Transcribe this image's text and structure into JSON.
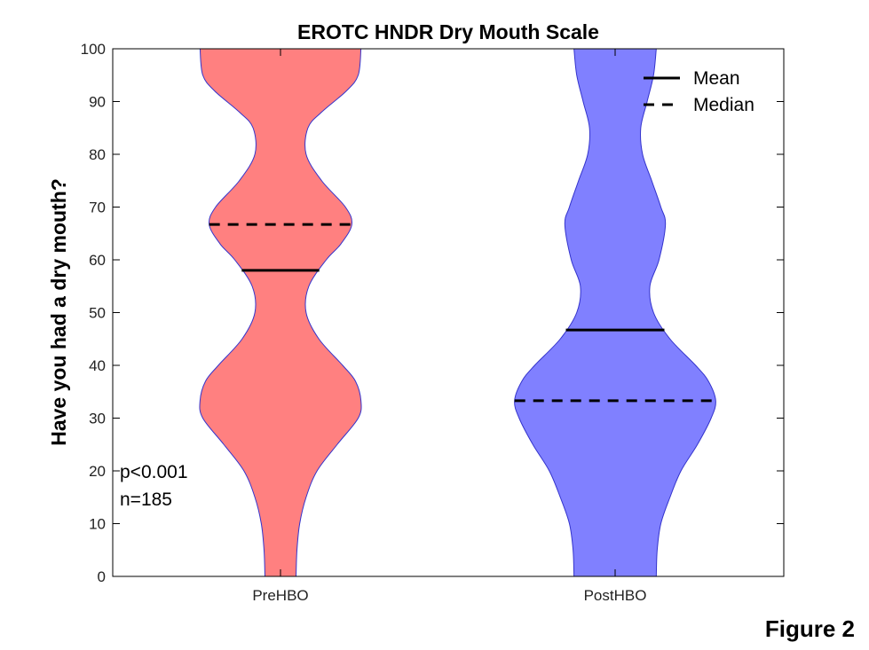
{
  "chart_data": {
    "type": "violin",
    "title": "EROTC HNDR Dry Mouth Scale",
    "xlabel": "",
    "ylabel": "Have you had a dry mouth?",
    "categories": [
      "PreHBO",
      "PostHBO"
    ],
    "ylim": [
      0,
      100
    ],
    "yticks": [
      0,
      10,
      20,
      30,
      40,
      50,
      60,
      70,
      80,
      90,
      100
    ],
    "grid": false,
    "legend": {
      "position": "top-right",
      "entries": [
        {
          "label": "Mean",
          "style": "solid"
        },
        {
          "label": "Median",
          "style": "dashed"
        }
      ]
    },
    "series": [
      {
        "name": "PreHBO",
        "color": "#ff8080",
        "edge_color": "#3333cc",
        "mean": 58,
        "median": 66.7,
        "profile": {
          "y": [
            0,
            5,
            10,
            15,
            20,
            25,
            30,
            33.3,
            37,
            40,
            45,
            50,
            55,
            60,
            63,
            66.7,
            70,
            75,
            80,
            85,
            88,
            92,
            95,
            100
          ],
          "halfwidth": [
            0.17,
            0.18,
            0.21,
            0.28,
            0.4,
            0.62,
            0.85,
            0.88,
            0.82,
            0.68,
            0.42,
            0.28,
            0.31,
            0.5,
            0.66,
            0.78,
            0.71,
            0.45,
            0.28,
            0.3,
            0.45,
            0.72,
            0.85,
            0.88
          ]
        }
      },
      {
        "name": "PostHBO",
        "color": "#8080ff",
        "edge_color": "#3333cc",
        "mean": 46.7,
        "median": 33.3,
        "profile": {
          "y": [
            0,
            5,
            10,
            15,
            20,
            25,
            30,
            33.3,
            37,
            40,
            45,
            50,
            55,
            60,
            66.7,
            70,
            75,
            80,
            85,
            90,
            95,
            100
          ],
          "halfwidth": [
            0.45,
            0.46,
            0.5,
            0.6,
            0.72,
            0.9,
            1.05,
            1.1,
            1.02,
            0.88,
            0.6,
            0.42,
            0.38,
            0.48,
            0.55,
            0.5,
            0.4,
            0.3,
            0.28,
            0.35,
            0.42,
            0.45
          ]
        }
      }
    ],
    "annotations": [
      "p<0.001",
      "n=185"
    ]
  },
  "figure_label": "Figure 2"
}
